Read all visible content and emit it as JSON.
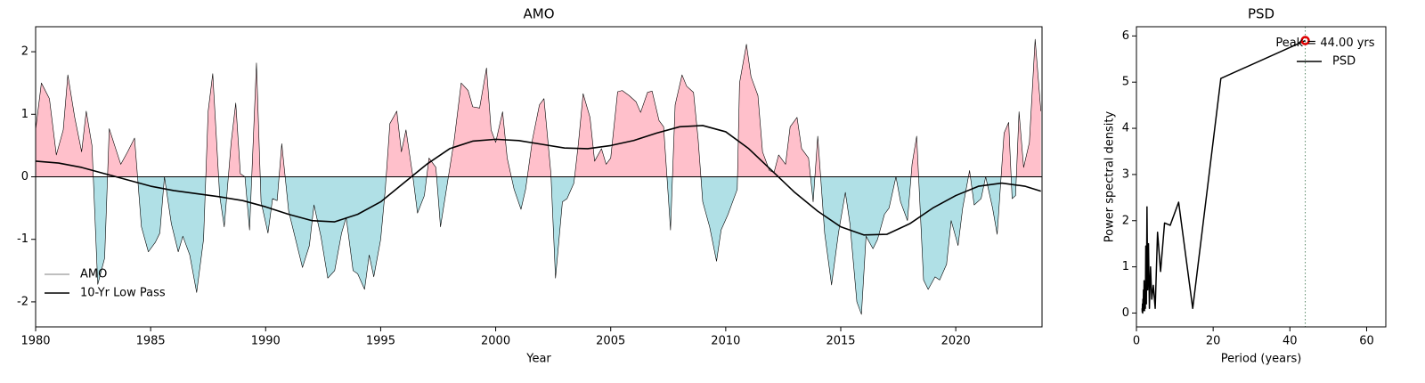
{
  "chart_data": [
    {
      "type": "line",
      "title": "AMO",
      "xlabel": "Year",
      "xlim": [
        1980,
        2023.75
      ],
      "xticks": [
        1980,
        1985,
        1990,
        1995,
        2000,
        2005,
        2010,
        2015,
        2020
      ],
      "ylim": [
        -2.4,
        2.4
      ],
      "yticks": [
        -2,
        -1,
        0,
        1,
        2
      ],
      "hline": 0,
      "pos_fill": "#ffc0cb",
      "neg_fill": "#b0e0e6",
      "legend": "lower left",
      "series": [
        {
          "name": "AMO",
          "color": "#000000",
          "linewidth": 0.6,
          "x": [
            1980.0,
            1980.25,
            1980.6,
            1980.9,
            1981.2,
            1981.4,
            1981.7,
            1982.0,
            1982.2,
            1982.45,
            1982.7,
            1983.0,
            1983.2,
            1983.7,
            1984.0,
            1984.3,
            1984.6,
            1984.9,
            1985.2,
            1985.4,
            1985.6,
            1985.9,
            1986.2,
            1986.4,
            1986.7,
            1987.0,
            1987.3,
            1987.5,
            1987.7,
            1988.0,
            1988.2,
            1988.5,
            1988.7,
            1988.9,
            1989.1,
            1989.3,
            1989.6,
            1989.8,
            1990.1,
            1990.3,
            1990.5,
            1990.7,
            1991.0,
            1991.3,
            1991.6,
            1991.9,
            1992.1,
            1992.4,
            1992.7,
            1993.0,
            1993.3,
            1993.5,
            1993.8,
            1994.0,
            1994.3,
            1994.5,
            1994.7,
            1995.0,
            1995.2,
            1995.4,
            1995.7,
            1995.9,
            1996.1,
            1996.4,
            1996.6,
            1996.9,
            1997.1,
            1997.4,
            1997.6,
            1997.9,
            1998.2,
            1998.5,
            1998.8,
            1999.0,
            1999.3,
            1999.6,
            1999.8,
            2000.0,
            2000.3,
            2000.5,
            2000.8,
            2001.1,
            2001.3,
            2001.6,
            2001.9,
            2002.1,
            2002.4,
            2002.6,
            2002.9,
            2003.1,
            2003.4,
            2003.6,
            2003.8,
            2004.1,
            2004.3,
            2004.6,
            2004.8,
            2005.0,
            2005.3,
            2005.5,
            2005.8,
            2006.1,
            2006.3,
            2006.6,
            2006.8,
            2007.1,
            2007.3,
            2007.6,
            2007.8,
            2008.1,
            2008.3,
            2008.6,
            2008.8,
            2009.0,
            2009.3,
            2009.6,
            2009.8,
            2010.1,
            2010.3,
            2010.5,
            2010.6,
            2010.9,
            2011.1,
            2011.4,
            2011.6,
            2011.9,
            2012.1,
            2012.3,
            2012.6,
            2012.8,
            2013.1,
            2013.3,
            2013.6,
            2013.8,
            2014.0,
            2014.3,
            2014.6,
            2014.9,
            2015.2,
            2015.4,
            2015.7,
            2015.9,
            2016.1,
            2016.4,
            2016.6,
            2016.9,
            2017.1,
            2017.4,
            2017.6,
            2017.9,
            2018.1,
            2018.3,
            2018.6,
            2018.8,
            2019.1,
            2019.3,
            2019.6,
            2019.8,
            2020.1,
            2020.3,
            2020.6,
            2020.8,
            2021.1,
            2021.3,
            2021.6,
            2021.8,
            2022.1,
            2022.3,
            2022.45,
            2022.6,
            2022.75,
            2022.95,
            2023.2,
            2023.45,
            2023.7
          ],
          "values": [
            0.75,
            1.5,
            1.25,
            0.35,
            0.75,
            1.63,
            0.95,
            0.4,
            1.05,
            0.5,
            -1.72,
            -1.3,
            0.77,
            0.2,
            0.4,
            0.62,
            -0.8,
            -1.2,
            -1.05,
            -0.9,
            0.0,
            -0.75,
            -1.2,
            -0.95,
            -1.25,
            -1.85,
            -1.0,
            1.05,
            1.65,
            -0.3,
            -0.8,
            0.55,
            1.18,
            0.05,
            0.0,
            -0.85,
            1.82,
            -0.4,
            -0.9,
            -0.35,
            -0.38,
            0.53,
            -0.55,
            -1.0,
            -1.45,
            -1.1,
            -0.45,
            -0.95,
            -1.62,
            -1.5,
            -0.9,
            -0.65,
            -1.5,
            -1.55,
            -1.8,
            -1.25,
            -1.6,
            -1.0,
            -0.2,
            0.85,
            1.05,
            0.4,
            0.75,
            0.0,
            -0.58,
            -0.3,
            0.3,
            0.15,
            -0.8,
            -0.1,
            0.6,
            1.5,
            1.38,
            1.12,
            1.1,
            1.74,
            0.75,
            0.55,
            1.04,
            0.3,
            -0.2,
            -0.52,
            -0.2,
            0.6,
            1.15,
            1.25,
            0.05,
            -1.62,
            -0.4,
            -0.35,
            -0.1,
            0.55,
            1.33,
            0.95,
            0.25,
            0.45,
            0.2,
            0.3,
            1.36,
            1.38,
            1.3,
            1.2,
            1.03,
            1.35,
            1.37,
            0.9,
            0.8,
            -0.85,
            1.15,
            1.63,
            1.45,
            1.35,
            0.6,
            -0.4,
            -0.8,
            -1.35,
            -0.85,
            -0.6,
            -0.4,
            -0.2,
            1.5,
            2.12,
            1.6,
            1.3,
            0.4,
            0.1,
            0.07,
            0.35,
            0.2,
            0.8,
            0.95,
            0.45,
            0.3,
            -0.4,
            0.65,
            -0.9,
            -1.73,
            -0.9,
            -0.25,
            -0.75,
            -2.0,
            -2.2,
            -0.95,
            -1.15,
            -1.0,
            -0.6,
            -0.5,
            0.0,
            -0.4,
            -0.7,
            0.2,
            0.65,
            -1.65,
            -1.8,
            -1.6,
            -1.65,
            -1.4,
            -0.7,
            -1.1,
            -0.5,
            0.1,
            -0.45,
            -0.35,
            0.0,
            -0.5,
            -0.92,
            0.7,
            0.87,
            -0.35,
            -0.3,
            1.04,
            0.15,
            0.55,
            2.2,
            1.05
          ]
        },
        {
          "name": "10-Yr Low Pass",
          "color": "#000000",
          "linewidth": 1.6,
          "x": [
            1980,
            1981,
            1982,
            1983,
            1984,
            1985,
            1986,
            1987,
            1988,
            1989,
            1990,
            1991,
            1992,
            1993,
            1994,
            1995,
            1996,
            1997,
            1998,
            1999,
            2000,
            2001,
            2002,
            2003,
            2004,
            2005,
            2006,
            2007,
            2008,
            2009,
            2010,
            2011,
            2012,
            2013,
            2014,
            2015,
            2016,
            2017,
            2018,
            2019,
            2020,
            2021,
            2022,
            2023,
            2023.7
          ],
          "values": [
            0.25,
            0.22,
            0.15,
            0.05,
            -0.05,
            -0.15,
            -0.22,
            -0.27,
            -0.32,
            -0.38,
            -0.48,
            -0.6,
            -0.7,
            -0.72,
            -0.6,
            -0.4,
            -0.1,
            0.2,
            0.45,
            0.57,
            0.6,
            0.58,
            0.52,
            0.46,
            0.45,
            0.5,
            0.58,
            0.7,
            0.8,
            0.82,
            0.72,
            0.45,
            0.1,
            -0.25,
            -0.55,
            -0.8,
            -0.93,
            -0.92,
            -0.75,
            -0.5,
            -0.3,
            -0.15,
            -0.1,
            -0.15,
            -0.23
          ]
        }
      ]
    },
    {
      "type": "line",
      "title": "PSD",
      "xlabel": "Period (years)",
      "ylabel": "Power spectral density",
      "xlim": [
        0,
        65
      ],
      "xticks": [
        0,
        20,
        40,
        60
      ],
      "ylim": [
        -0.3,
        6.2
      ],
      "yticks": [
        0,
        1,
        2,
        3,
        4,
        5,
        6
      ],
      "legend": "upper right",
      "vline": 44,
      "vline_color": "#5a8a6a",
      "peak": {
        "x": 44,
        "y": 5.9,
        "label": "Peak = 44.00 yrs",
        "color": "#e00000"
      },
      "series": [
        {
          "name": "PSD",
          "color": "#000000",
          "linewidth": 1.5,
          "x": [
            44,
            22,
            14.67,
            11,
            8.8,
            7.33,
            6.29,
            5.5,
            4.89,
            4.4,
            4,
            3.67,
            3.38,
            3.14,
            2.93,
            2.75,
            2.59,
            2.44,
            2.32,
            2.2,
            2.1,
            2,
            1.91,
            1.83,
            1.76,
            1.69,
            1.63,
            1.57,
            1.52,
            1.47
          ],
          "values": [
            5.9,
            5.08,
            0.1,
            2.4,
            1.9,
            1.95,
            0.9,
            1.75,
            0.1,
            0.6,
            0.3,
            1.0,
            0.1,
            1.5,
            0.5,
            2.3,
            0.2,
            1.45,
            0.1,
            0.6,
            0.05,
            0.7,
            0.1,
            0.5,
            0.05,
            0.3,
            0.0,
            0.2,
            0.02,
            0.1
          ]
        }
      ]
    }
  ]
}
